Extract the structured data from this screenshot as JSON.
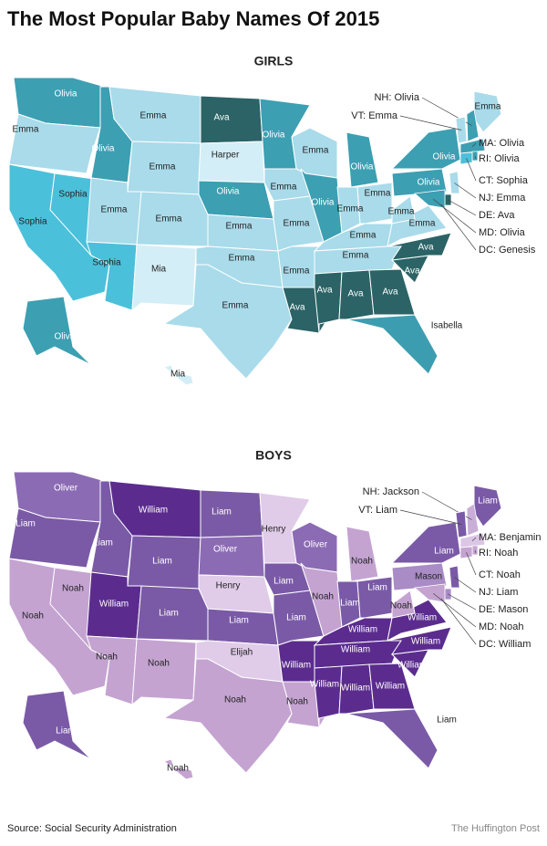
{
  "title": "The Most Popular Baby Names Of 2015",
  "girls": {
    "heading": "GIRLS",
    "states": [
      {
        "label": "Olivia",
        "color": "#3c9fb2"
      },
      {
        "label": "Emma",
        "color": "#a9dbea"
      },
      {
        "label": "Sophia",
        "color": "#4bc0da"
      },
      {
        "label": "Sophia",
        "color": "#4bc0da"
      },
      {
        "label": "Olivia",
        "color": "#3c9fb2"
      },
      {
        "label": "Emma",
        "color": "#a9dbea"
      },
      {
        "label": "Emma",
        "color": "#a9dbea"
      },
      {
        "label": "Emma",
        "color": "#a9dbea"
      },
      {
        "label": "Sophia",
        "color": "#4bc0da"
      },
      {
        "label": "Emma",
        "color": "#a9dbea"
      },
      {
        "label": "Mia",
        "color": "#d3eef6"
      },
      {
        "label": "Ava",
        "color": "#2b6366"
      },
      {
        "label": "Harper",
        "color": "#d3eef6"
      },
      {
        "label": "Olivia",
        "color": "#3c9fb2"
      },
      {
        "label": "Emma",
        "color": "#a9dbea"
      },
      {
        "label": "Emma",
        "color": "#a9dbea"
      },
      {
        "label": "Emma",
        "color": "#a9dbea"
      },
      {
        "label": "Olivia",
        "color": "#3c9fb2"
      },
      {
        "label": "Emma",
        "color": "#a9dbea"
      },
      {
        "label": "Emma",
        "color": "#a9dbea"
      },
      {
        "label": "Emma",
        "color": "#a9dbea"
      },
      {
        "label": "Ava",
        "color": "#2b6366"
      },
      {
        "label": "Emma",
        "color": "#a9dbea"
      },
      {
        "label": "Olivia",
        "color": "#3c9fb2"
      },
      {
        "label": "Olivia",
        "color": "#3c9fb2"
      },
      {
        "label": "Emma",
        "color": "#a9dbea"
      },
      {
        "label": "Emma",
        "color": "#a9dbea"
      },
      {
        "label": "Emma",
        "color": "#a9dbea"
      },
      {
        "label": "Emma",
        "color": "#a9dbea"
      },
      {
        "label": "Ava",
        "color": "#2b6366"
      },
      {
        "label": "Ava",
        "color": "#2b6366"
      },
      {
        "label": "Ava",
        "color": "#2b6366"
      },
      {
        "label": "Isabella",
        "color": "#3d9db0"
      },
      {
        "label": "Ava",
        "color": "#2b6366"
      },
      {
        "label": "Ava",
        "color": "#2b6366"
      },
      {
        "label": "Emma",
        "color": "#a9dbea"
      },
      {
        "label": "Emma",
        "color": "#a9dbea"
      },
      {
        "label": "Olivia",
        "color": "#3c9fb2"
      },
      {
        "label": "Olivia",
        "color": "#3c9fb2"
      },
      {
        "label": "Emma",
        "color": "#a9dbea"
      },
      {
        "label": "Olivia",
        "color": "#3c9fb2"
      },
      {
        "label": "Mia",
        "color": "#d3eef6"
      }
    ],
    "callouts": [
      {
        "text": "NH: Olivia",
        "color": "#3c9fb2"
      },
      {
        "text": "VT: Emma",
        "color": "#a9dbea"
      },
      {
        "text": "MA: Olivia",
        "color": "#3c9fb2"
      },
      {
        "text": "RI: Olivia",
        "color": "#3c9fb2"
      },
      {
        "text": "CT: Sophia",
        "color": "#4bc0da"
      },
      {
        "text": "NJ: Emma",
        "color": "#a9dbea"
      },
      {
        "text": "DE: Ava",
        "color": "#2b6366"
      },
      {
        "text": "MD: Olivia",
        "color": "#3c9fb2"
      },
      {
        "text": "DC: Genesis"
      }
    ]
  },
  "boys": {
    "heading": "BOYS",
    "states": [
      {
        "label": "Oliver",
        "color": "#8c6bb5"
      },
      {
        "label": "Liam",
        "color": "#7a5aa6"
      },
      {
        "label": "Noah",
        "color": "#c4a3d1"
      },
      {
        "label": "Noah",
        "color": "#c4a3d1"
      },
      {
        "label": "Liam",
        "color": "#7a5aa6"
      },
      {
        "label": "William",
        "color": "#5b2c8e"
      },
      {
        "label": "Liam",
        "color": "#7a5aa6"
      },
      {
        "label": "William",
        "color": "#5b2c8e"
      },
      {
        "label": "Noah",
        "color": "#c4a3d1"
      },
      {
        "label": "Liam",
        "color": "#7a5aa6"
      },
      {
        "label": "Noah",
        "color": "#c4a3d1"
      },
      {
        "label": "Liam",
        "color": "#7a5aa6"
      },
      {
        "label": "Oliver",
        "color": "#8c6bb5"
      },
      {
        "label": "Henry",
        "color": "#e0cbe8"
      },
      {
        "label": "Liam",
        "color": "#7a5aa6"
      },
      {
        "label": "Elijah",
        "color": "#e0cbe8"
      },
      {
        "label": "Noah",
        "color": "#c4a3d1"
      },
      {
        "label": "Henry",
        "color": "#e0cbe8"
      },
      {
        "label": "Liam",
        "color": "#7a5aa6"
      },
      {
        "label": "Liam",
        "color": "#7a5aa6"
      },
      {
        "label": "William",
        "color": "#5b2c8e"
      },
      {
        "label": "Noah",
        "color": "#c4a3d1"
      },
      {
        "label": "Oliver",
        "color": "#8c6bb5"
      },
      {
        "label": "Noah",
        "color": "#c4a3d1"
      },
      {
        "label": "Noah",
        "color": "#c4a3d1"
      },
      {
        "label": "Liam",
        "color": "#7a5aa6"
      },
      {
        "label": "Liam",
        "color": "#7a5aa6"
      },
      {
        "label": "William",
        "color": "#5b2c8e"
      },
      {
        "label": "William",
        "color": "#5b2c8e"
      },
      {
        "label": "William",
        "color": "#5b2c8e"
      },
      {
        "label": "William",
        "color": "#5b2c8e"
      },
      {
        "label": "William",
        "color": "#5b2c8e"
      },
      {
        "label": "Liam",
        "color": "#7a5aa6"
      },
      {
        "label": "William",
        "color": "#5b2c8e"
      },
      {
        "label": "William",
        "color": "#5b2c8e"
      },
      {
        "label": "William",
        "color": "#5b2c8e"
      },
      {
        "label": "Noah",
        "color": "#c4a3d1"
      },
      {
        "label": "Mason",
        "color": "#a98bc6"
      },
      {
        "label": "Liam",
        "color": "#7a5aa6"
      },
      {
        "label": "Liam",
        "color": "#7a5aa6"
      },
      {
        "label": "Liam",
        "color": "#7a5aa6"
      },
      {
        "label": "Noah",
        "color": "#c4a3d1"
      }
    ],
    "callouts": [
      {
        "text": "NH: Jackson",
        "color": "#c9aed8"
      },
      {
        "text": "VT: Liam",
        "color": "#7a5aa6"
      },
      {
        "text": "MA: Benjamin",
        "color": "#dcc6e6"
      },
      {
        "text": "RI: Noah",
        "color": "#c4a3d1"
      },
      {
        "text": "CT: Noah",
        "color": "#c4a3d1"
      },
      {
        "text": "NJ: Liam",
        "color": "#7a5aa6"
      },
      {
        "text": "DE: Mason",
        "color": "#a98bc6"
      },
      {
        "text": "MD: Noah",
        "color": "#c4a3d1"
      },
      {
        "text": "DC: William"
      }
    ]
  },
  "source": "Source: Social Security Administration",
  "credit": "The Huffington Post"
}
